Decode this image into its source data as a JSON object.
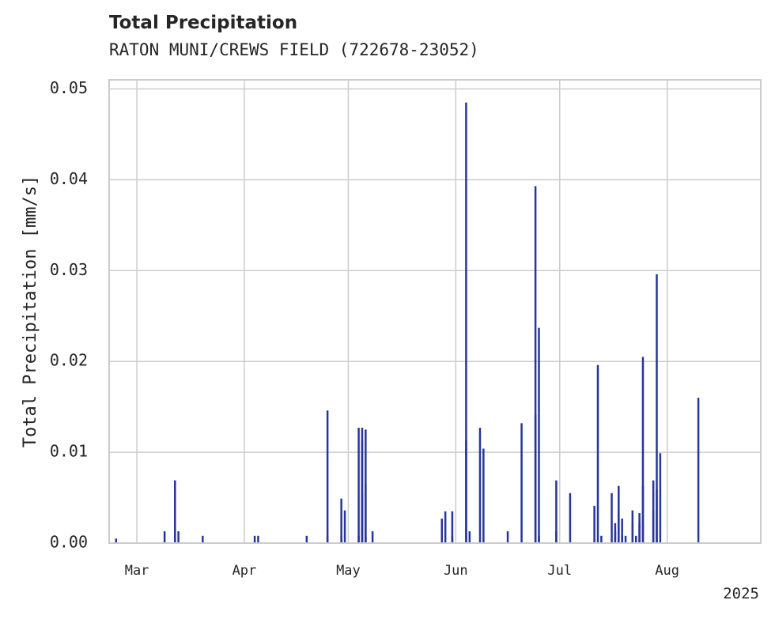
{
  "chart_data": {
    "type": "bar",
    "title": "Total Precipitation",
    "subtitle": "RATON MUNI/CREWS FIELD (722678-23052)",
    "ylabel": "Total Precipitation [mm/s]",
    "xlabel": "",
    "year_label": "2025",
    "ylim": [
      0,
      0.051
    ],
    "xlim": [
      "2025-02-21",
      "2025-08-28"
    ],
    "yticks": [
      "0.00",
      "0.01",
      "0.02",
      "0.03",
      "0.04",
      "0.05"
    ],
    "xticks": [
      {
        "date": "2025-03-01",
        "label": "Mar"
      },
      {
        "date": "2025-04-01",
        "label": "Apr"
      },
      {
        "date": "2025-05-01",
        "label": "May"
      },
      {
        "date": "2025-06-01",
        "label": "Jun"
      },
      {
        "date": "2025-07-01",
        "label": "Jul"
      },
      {
        "date": "2025-08-01",
        "label": "Aug"
      }
    ],
    "grid": true,
    "color": "#27359a",
    "x": [
      "2025-02-23",
      "2025-03-09",
      "2025-03-12",
      "2025-03-12",
      "2025-03-13",
      "2025-03-20",
      "2025-04-04",
      "2025-04-05",
      "2025-04-19",
      "2025-04-25",
      "2025-04-25",
      "2025-04-29",
      "2025-04-29",
      "2025-04-30",
      "2025-05-04",
      "2025-05-04",
      "2025-05-05",
      "2025-05-05",
      "2025-05-05",
      "2025-05-06",
      "2025-05-06",
      "2025-05-06",
      "2025-05-08",
      "2025-05-28",
      "2025-05-29",
      "2025-05-31",
      "2025-05-31",
      "2025-06-04",
      "2025-06-04",
      "2025-06-05",
      "2025-06-08",
      "2025-06-09",
      "2025-06-16",
      "2025-06-20",
      "2025-06-24",
      "2025-06-24",
      "2025-06-25",
      "2025-06-25",
      "2025-06-30",
      "2025-06-30",
      "2025-07-04",
      "2025-07-11",
      "2025-07-12",
      "2025-07-13",
      "2025-07-16",
      "2025-07-17",
      "2025-07-17",
      "2025-07-18",
      "2025-07-18",
      "2025-07-19",
      "2025-07-19",
      "2025-07-20",
      "2025-07-22",
      "2025-07-22",
      "2025-07-23",
      "2025-07-24",
      "2025-07-24",
      "2025-07-25",
      "2025-07-25",
      "2025-07-28",
      "2025-07-28",
      "2025-07-29",
      "2025-07-29",
      "2025-07-30",
      "2025-08-10"
    ],
    "values": [
      0.0005,
      0.0013,
      0.0069,
      0.0069,
      0.0013,
      0.0008,
      0.0008,
      0.0008,
      0.0008,
      0.0146,
      0.0008,
      0.0049,
      0.0008,
      0.0036,
      0.0008,
      0.0127,
      0.0113,
      0.0127,
      0.0055,
      0.0065,
      0.0125,
      0.0008,
      0.0013,
      0.0027,
      0.0035,
      0.0035,
      0.0008,
      0.0485,
      0.0113,
      0.0013,
      0.0127,
      0.0104,
      0.0013,
      0.0132,
      0.0393,
      0.0141,
      0.0237,
      0.0008,
      0.0069,
      0.0013,
      0.0055,
      0.0041,
      0.0196,
      0.0008,
      0.0055,
      0.0013,
      0.0022,
      0.0063,
      0.0036,
      0.0027,
      0.0008,
      0.0008,
      0.0022,
      0.0036,
      0.0008,
      0.0033,
      0.0022,
      0.0205,
      0.0063,
      0.0069,
      0.0036,
      0.0296,
      0.0059,
      0.0099,
      0.016
    ]
  }
}
